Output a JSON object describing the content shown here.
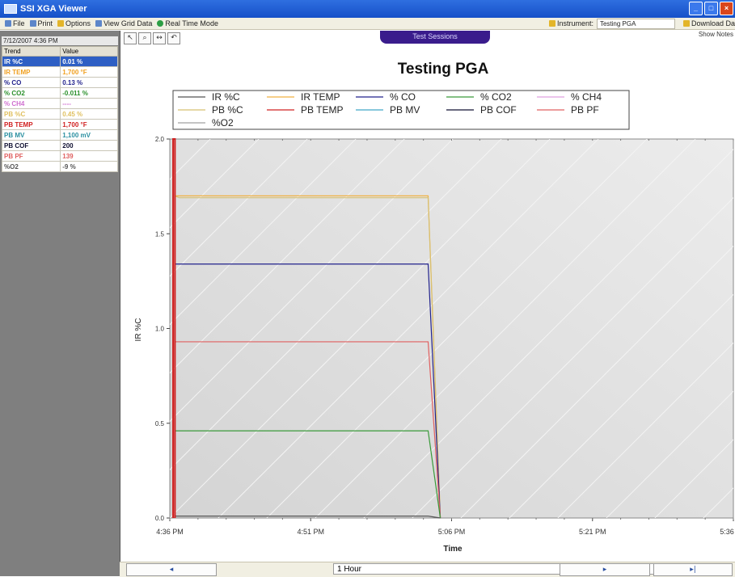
{
  "window": {
    "title": "SSI XGA Viewer"
  },
  "toolbar": {
    "file": "File",
    "print": "Print",
    "options": "Options",
    "view_grid": "View Grid Data",
    "realtime": "Real Time Mode",
    "instrument_label": "Instrument:",
    "instrument_value": "Testing PGA",
    "download": "Download Da"
  },
  "session_tab": "Test Sessions",
  "show_notes": "Show Notes",
  "left_panel": {
    "datetime": "7/12/2007 4:36 PM",
    "headers": [
      "Trend",
      "Value"
    ],
    "rows": [
      {
        "trend": "IR %C",
        "value": "0.01 %",
        "color": "#ffffff",
        "selected": true
      },
      {
        "trend": "IR TEMP",
        "value": "1,700 °F",
        "color": "#f0a020",
        "selected": false
      },
      {
        "trend": "% CO",
        "value": "0.13 %",
        "color": "#22228c",
        "selected": false
      },
      {
        "trend": "% CO2",
        "value": "-0.011 %",
        "color": "#2a8f2a",
        "selected": false
      },
      {
        "trend": "% CH4",
        "value": "----",
        "color": "#d070d0",
        "selected": false
      },
      {
        "trend": "PB %C",
        "value": "0.45 %",
        "color": "#e0c060",
        "selected": false
      },
      {
        "trend": "PB TEMP",
        "value": "1,700 °F",
        "color": "#d02020",
        "selected": false
      },
      {
        "trend": "PB MV",
        "value": "1,100 mV",
        "color": "#2a8fa0",
        "selected": false
      },
      {
        "trend": "PB COF",
        "value": "200",
        "color": "#111133",
        "selected": false
      },
      {
        "trend": "PB PF",
        "value": "139",
        "color": "#e06060",
        "selected": false
      },
      {
        "trend": "%O2",
        "value": "-9 %",
        "color": "#555555",
        "selected": false
      }
    ]
  },
  "bottom": {
    "prev": "◂",
    "range": "1 Hour",
    "next": "▸",
    "last": "▸|"
  },
  "chart_data": {
    "type": "line",
    "title": "Testing PGA",
    "xlabel": "Time",
    "ylabel": "IR %C",
    "x_ticks": [
      "4:36 PM",
      "4:51 PM",
      "5:06 PM",
      "5:21 PM",
      "5:36 PM"
    ],
    "y_ticks": [
      "0.0",
      "0.5",
      "1.0",
      "1.5",
      "2.0"
    ],
    "ylim": [
      0,
      2.0
    ],
    "xlim_minutes": [
      0,
      60
    ],
    "legend": [
      {
        "name": "IR %C",
        "color": "#555555"
      },
      {
        "name": "IR TEMP",
        "color": "#f0b040"
      },
      {
        "name": "% CO",
        "color": "#22228c"
      },
      {
        "name": "% CO2",
        "color": "#3a9a3a"
      },
      {
        "name": "% CH4",
        "color": "#e0a0e0"
      },
      {
        "name": "PB %C",
        "color": "#d8c070"
      },
      {
        "name": "PB TEMP",
        "color": "#d02020"
      },
      {
        "name": "PB MV",
        "color": "#40a8c8"
      },
      {
        "name": "PB COF",
        "color": "#111133"
      },
      {
        "name": "PB PF",
        "color": "#e06060"
      },
      {
        "name": "%O2",
        "color": "#a0a0a0"
      }
    ],
    "series": [
      {
        "name": "IR TEMP",
        "color": "#f0b040",
        "x": [
          0.5,
          1.0,
          27.5,
          28.8
        ],
        "y": [
          1.7,
          1.7,
          1.7,
          0.0
        ]
      },
      {
        "name": "PB %C",
        "color": "#d8c070",
        "x": [
          0.5,
          1.0,
          27.5,
          28.8
        ],
        "y": [
          1.7,
          1.69,
          1.69,
          0.0
        ]
      },
      {
        "name": "% CO",
        "color": "#22228c",
        "x": [
          0.5,
          1.0,
          27.5,
          28.8
        ],
        "y": [
          1.34,
          1.34,
          1.34,
          0.0
        ]
      },
      {
        "name": "PB PF",
        "color": "#e06060",
        "x": [
          0.5,
          1.0,
          27.5,
          28.8
        ],
        "y": [
          0.93,
          0.93,
          0.93,
          0.0
        ]
      },
      {
        "name": "% CO2",
        "color": "#3a9a3a",
        "x": [
          0.5,
          1.0,
          27.5,
          28.8
        ],
        "y": [
          0.46,
          0.46,
          0.46,
          0.0
        ]
      },
      {
        "name": "IR %C",
        "color": "#555555",
        "x": [
          0.5,
          1.0,
          27.5,
          28.8
        ],
        "y": [
          0.01,
          0.01,
          0.01,
          0.0
        ]
      },
      {
        "name": "PB TEMP",
        "color": "#d02020",
        "x": [
          0.35,
          0.35,
          0.55,
          0.55
        ],
        "y": [
          0.0,
          2.0,
          2.0,
          0.0
        ]
      }
    ]
  }
}
